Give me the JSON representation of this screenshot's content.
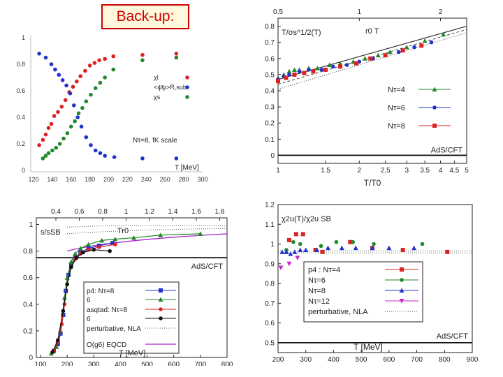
{
  "slide": {
    "title": "Back-up:"
  },
  "chart_data": [
    {
      "type": "scatter",
      "title": "",
      "xlabel": "T [MeV]",
      "ylabel": "",
      "xlim": [
        120,
        300
      ],
      "ylim": [
        0,
        1
      ],
      "x_ticks": [
        "120",
        "140",
        "160",
        "180",
        "200",
        "220",
        "240",
        "260",
        "280",
        "300"
      ],
      "y_ticks": [
        "0",
        "0.2",
        "0.4",
        "0.6",
        "0.8",
        "1"
      ],
      "annotation": "Nτ=8, fK scale",
      "series": [
        {
          "name": "χl",
          "color": "#dd2222",
          "x": [
            126,
            130,
            133,
            136,
            139,
            142,
            146,
            150,
            154,
            158,
            162,
            166,
            170,
            175,
            180,
            185,
            190,
            196,
            205,
            236,
            272
          ],
          "y": [
            0.19,
            0.23,
            0.27,
            0.32,
            0.35,
            0.41,
            0.44,
            0.48,
            0.53,
            0.59,
            0.63,
            0.67,
            0.71,
            0.75,
            0.79,
            0.81,
            0.83,
            0.84,
            0.86,
            0.87,
            0.88
          ]
        },
        {
          "name": "<ψ̄ψ>R,sub",
          "color": "#2233cc",
          "x": [
            126,
            133,
            139,
            143,
            147,
            151,
            155,
            159,
            163,
            167,
            171,
            176,
            181,
            186,
            191,
            196,
            206,
            236,
            272
          ],
          "y": [
            0.88,
            0.85,
            0.8,
            0.76,
            0.72,
            0.68,
            0.64,
            0.58,
            0.49,
            0.4,
            0.33,
            0.25,
            0.19,
            0.15,
            0.13,
            0.11,
            0.1,
            0.09,
            0.09
          ]
        },
        {
          "name": "χs",
          "color": "#22882a",
          "x": [
            130,
            133,
            136,
            140,
            144,
            148,
            152,
            156,
            160,
            164,
            168,
            172,
            176,
            181,
            186,
            191,
            196,
            205,
            236,
            272
          ],
          "y": [
            0.09,
            0.11,
            0.13,
            0.15,
            0.17,
            0.2,
            0.24,
            0.28,
            0.33,
            0.37,
            0.43,
            0.47,
            0.52,
            0.57,
            0.62,
            0.66,
            0.7,
            0.76,
            0.83,
            0.85
          ]
        }
      ]
    },
    {
      "type": "scatter",
      "xlabel": "T/T0",
      "ylabel": "T/σs^1/2(T)",
      "top_axis_label": "r0 T",
      "xlim": [
        1,
        5
      ],
      "ylim": [
        -0.05,
        0.85
      ],
      "x_ticks": [
        "1",
        "1.5",
        "2",
        "2.5",
        "3",
        "3.5",
        "4",
        "4.5",
        "5"
      ],
      "top_ticks": [
        "0.5",
        "1",
        "2"
      ],
      "y_ticks": [
        "0",
        "0.1",
        "0.2",
        "0.3",
        "0.4",
        "0.5",
        "0.6",
        "0.7",
        "0.8"
      ],
      "reference_line": {
        "label": "AdS/CFT",
        "y": 0
      },
      "series": [
        {
          "name": "Nτ=4",
          "color": "#22882a",
          "x": [
            1.0,
            1.05,
            1.1,
            1.15,
            1.2,
            1.3,
            1.4,
            1.55,
            1.7,
            1.9,
            2.1,
            2.35,
            2.6,
            3.0,
            3.5,
            4.1
          ],
          "y": [
            0.48,
            0.5,
            0.52,
            0.53,
            0.53,
            0.54,
            0.54,
            0.56,
            0.57,
            0.58,
            0.6,
            0.62,
            0.64,
            0.67,
            0.71,
            0.75
          ]
        },
        {
          "name": "Nτ=6",
          "color": "#2233cc",
          "x": [
            1.0,
            1.05,
            1.1,
            1.2,
            1.3,
            1.45,
            1.6,
            1.8,
            2.0,
            2.25,
            2.5,
            2.8,
            3.2,
            3.7
          ],
          "y": [
            0.47,
            0.49,
            0.5,
            0.52,
            0.53,
            0.53,
            0.55,
            0.56,
            0.58,
            0.6,
            0.62,
            0.64,
            0.67,
            0.7
          ]
        },
        {
          "name": "Nτ=8",
          "color": "#dd2222",
          "x": [
            1.0,
            1.07,
            1.15,
            1.25,
            1.35,
            1.5,
            1.7,
            1.95,
            2.2,
            2.5,
            2.9,
            3.4
          ],
          "y": [
            0.46,
            0.48,
            0.5,
            0.51,
            0.52,
            0.53,
            0.55,
            0.57,
            0.6,
            0.62,
            0.65,
            0.68
          ]
        }
      ]
    },
    {
      "type": "line",
      "xlabel": "T [MeV]",
      "ylabel": "s/sSB",
      "top_axis_label": "Tr0",
      "xlim": [
        100,
        800
      ],
      "ylim": [
        0,
        1.05
      ],
      "x_ticks": [
        "100",
        "200",
        "300",
        "400",
        "500",
        "600",
        "700",
        "800"
      ],
      "top_ticks": [
        "0.4",
        "0.6",
        "0.8",
        "1",
        "1.2",
        "1.4",
        "1.6",
        "1.8"
      ],
      "y_ticks": [
        "0",
        "0.2",
        "0.4",
        "0.6",
        "0.8",
        "1"
      ],
      "reference_line": {
        "label": "AdS/CFT",
        "y": 0.75
      },
      "series": [
        {
          "name": "p4: Nτ=8",
          "color": "#2233cc",
          "x": [
            150,
            165,
            175,
            185,
            195,
            205,
            215,
            230,
            250,
            280,
            320,
            370
          ],
          "y": [
            0.05,
            0.1,
            0.18,
            0.32,
            0.5,
            0.62,
            0.7,
            0.75,
            0.79,
            0.82,
            0.84,
            0.86
          ]
        },
        {
          "name": "6",
          "color": "#22882a",
          "x": [
            140,
            160,
            175,
            190,
            200,
            215,
            230,
            250,
            280,
            330,
            380,
            450,
            550,
            700
          ],
          "y": [
            0.03,
            0.08,
            0.2,
            0.45,
            0.6,
            0.72,
            0.78,
            0.82,
            0.85,
            0.88,
            0.89,
            0.9,
            0.92,
            0.93
          ]
        },
        {
          "name": "asqtad: Nτ=8",
          "color": "#dd2222",
          "x": [
            150,
            165,
            180,
            190,
            200,
            215,
            230,
            250,
            280,
            320,
            380
          ],
          "y": [
            0.05,
            0.12,
            0.25,
            0.4,
            0.55,
            0.68,
            0.74,
            0.78,
            0.81,
            0.83,
            0.85
          ]
        },
        {
          "name": "6",
          "color": "#111111",
          "x": [
            145,
            165,
            185,
            200,
            215,
            235,
            260,
            300,
            360
          ],
          "y": [
            0.04,
            0.13,
            0.35,
            0.55,
            0.68,
            0.75,
            0.79,
            0.81,
            0.8
          ]
        }
      ],
      "legend_lines": [
        "perturbative, NLA",
        "O(g6) EQCD"
      ]
    },
    {
      "type": "scatter",
      "xlabel": "T [MeV]",
      "ylabel": "χ2u(T)/χ2u SB",
      "xlim": [
        200,
        900
      ],
      "ylim": [
        0.45,
        1.2
      ],
      "x_ticks": [
        "200",
        "300",
        "400",
        "500",
        "600",
        "700",
        "800",
        "900"
      ],
      "y_ticks": [
        "0.5",
        "0.6",
        "0.7",
        "0.8",
        "0.9",
        "1",
        "1.1",
        "1.2"
      ],
      "reference_line": {
        "label": "AdS/CFT",
        "y": 0.5
      },
      "series": [
        {
          "name": "p4 : Nτ=4",
          "color": "#dd2222",
          "x": [
            240,
            265,
            290,
            335,
            360,
            460,
            540,
            650,
            810
          ],
          "y": [
            1.02,
            1.05,
            1.05,
            0.97,
            0.96,
            1.01,
            0.98,
            0.97,
            0.96
          ]
        },
        {
          "name": "Nτ=6",
          "color": "#22882a",
          "x": [
            230,
            255,
            280,
            355,
            410,
            470,
            545,
            720
          ],
          "y": [
            0.97,
            1.01,
            1.0,
            0.99,
            1.01,
            1.01,
            1.0,
            1.0
          ]
        },
        {
          "name": "Nτ=8",
          "color": "#2233cc",
          "x": [
            215,
            230,
            245,
            260,
            280,
            300,
            340,
            380,
            430,
            480,
            540,
            600,
            690
          ],
          "y": [
            0.96,
            0.96,
            0.95,
            0.96,
            0.97,
            0.97,
            0.97,
            0.98,
            0.98,
            0.98,
            0.98,
            0.98,
            0.98
          ]
        },
        {
          "name": "Nτ=12",
          "color": "#cc22cc",
          "x": [
            210,
            240,
            270
          ],
          "y": [
            0.88,
            0.9,
            0.93
          ]
        }
      ],
      "legend_lines": [
        "perturbative, NLA"
      ]
    }
  ]
}
